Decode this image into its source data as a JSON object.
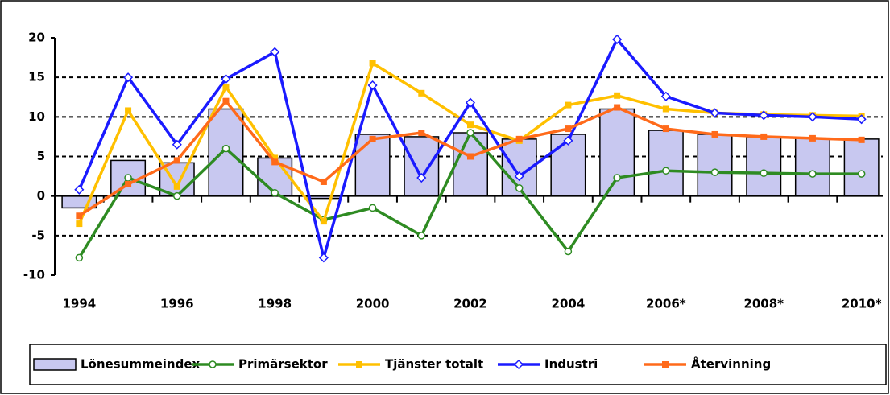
{
  "chart_data": {
    "type": "bar-line",
    "categories": [
      "1994",
      null,
      "1996",
      null,
      "1998",
      null,
      "2000",
      null,
      "2002",
      null,
      "2004",
      null,
      "2006*",
      null,
      "2008*",
      null,
      "2010*"
    ],
    "ylim": [
      -10,
      20
    ],
    "yticks": [
      -10,
      -5,
      0,
      5,
      10,
      15,
      20
    ],
    "grid": true,
    "series": [
      {
        "name": "Lönesummeindex",
        "kind": "bar",
        "color": "#c8c8f0",
        "values": [
          -1.5,
          4.5,
          4.2,
          11,
          4.8,
          -0.3,
          7.8,
          7.5,
          8,
          7.2,
          7.8,
          11,
          8.3,
          7.8,
          7.5,
          7.3,
          7.2
        ]
      },
      {
        "name": "Primärsektor",
        "kind": "line",
        "marker": "circle",
        "color": "#2e8b22",
        "values": [
          -7.8,
          2.3,
          0,
          6,
          0.4,
          -3,
          -1.5,
          -5,
          8,
          1,
          -7,
          2.3,
          3.2,
          3,
          2.9,
          2.8,
          2.8
        ]
      },
      {
        "name": "Tjänster totalt",
        "kind": "line",
        "marker": "square",
        "color": "#ffc000",
        "values": [
          -3.5,
          10.8,
          1.2,
          13.8,
          4.8,
          -3.2,
          16.8,
          13,
          9,
          7,
          11.5,
          12.7,
          11,
          10.5,
          10.3,
          10.2,
          10.1
        ]
      },
      {
        "name": "Industri",
        "kind": "line",
        "marker": "diamond",
        "color": "#1a1aff",
        "values": [
          0.8,
          15,
          6.5,
          14.8,
          18.2,
          -7.8,
          14,
          2.3,
          11.8,
          2.5,
          7,
          19.8,
          12.6,
          10.5,
          10.2,
          10,
          9.7
        ]
      },
      {
        "name": "Återvinning",
        "kind": "line",
        "marker": "square",
        "color": "#ff6a1a",
        "values": [
          -2.5,
          1.5,
          4.5,
          12,
          4.3,
          1.8,
          7.2,
          8,
          5,
          7.2,
          8.5,
          11.2,
          8.5,
          7.8,
          7.5,
          7.3,
          7.1
        ]
      }
    ]
  }
}
